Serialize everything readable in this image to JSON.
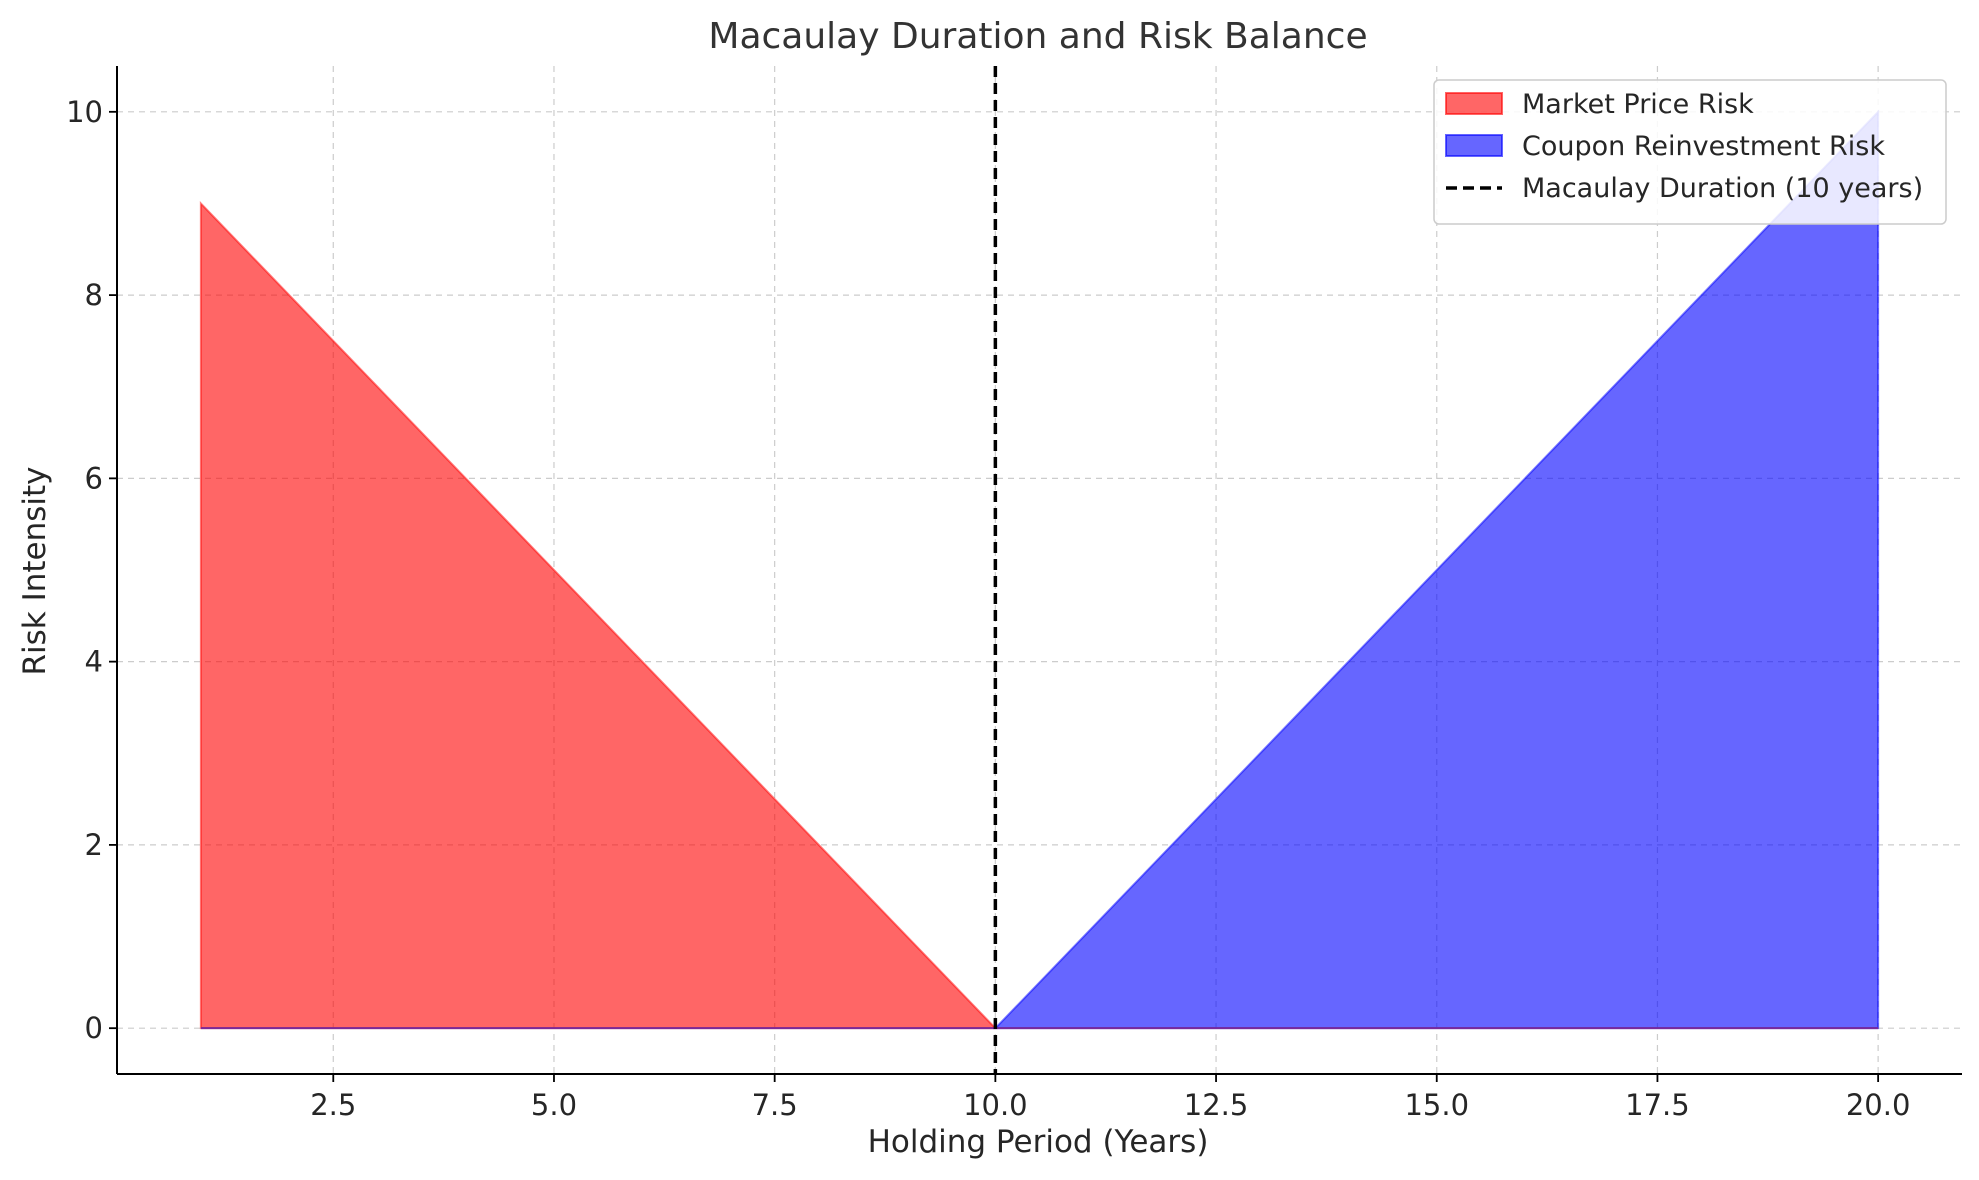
{
  "chart_data": {
    "type": "area",
    "title": "Macaulay Duration and Risk Balance",
    "xlabel": "Holding Period (Years)",
    "ylabel": "Risk Intensity",
    "xlim": [
      0.05,
      20.95
    ],
    "ylim": [
      -0.5,
      10.5
    ],
    "x_ticks": [
      2.5,
      5.0,
      7.5,
      10.0,
      12.5,
      15.0,
      17.5,
      20.0
    ],
    "x_tick_labels": [
      "2.5",
      "5.0",
      "7.5",
      "10.0",
      "12.5",
      "15.0",
      "17.5",
      "20.0"
    ],
    "y_ticks": [
      0,
      2,
      4,
      6,
      8,
      10
    ],
    "y_tick_labels": [
      "0",
      "2",
      "4",
      "6",
      "8",
      "10"
    ],
    "grid": true,
    "legend_position": "top-right",
    "series": [
      {
        "name": "Market Price Risk",
        "kind": "area",
        "color": "#ff0000",
        "opacity": 0.6,
        "x": [
          1,
          10
        ],
        "y": [
          9,
          0
        ]
      },
      {
        "name": "Coupon Reinvestment Risk",
        "kind": "area",
        "color": "#0000ff",
        "opacity": 0.6,
        "x": [
          10,
          20
        ],
        "y": [
          0,
          10
        ]
      },
      {
        "name": "Macaulay Duration (10 years)",
        "kind": "vline",
        "color": "#000000",
        "x": 10
      }
    ]
  }
}
